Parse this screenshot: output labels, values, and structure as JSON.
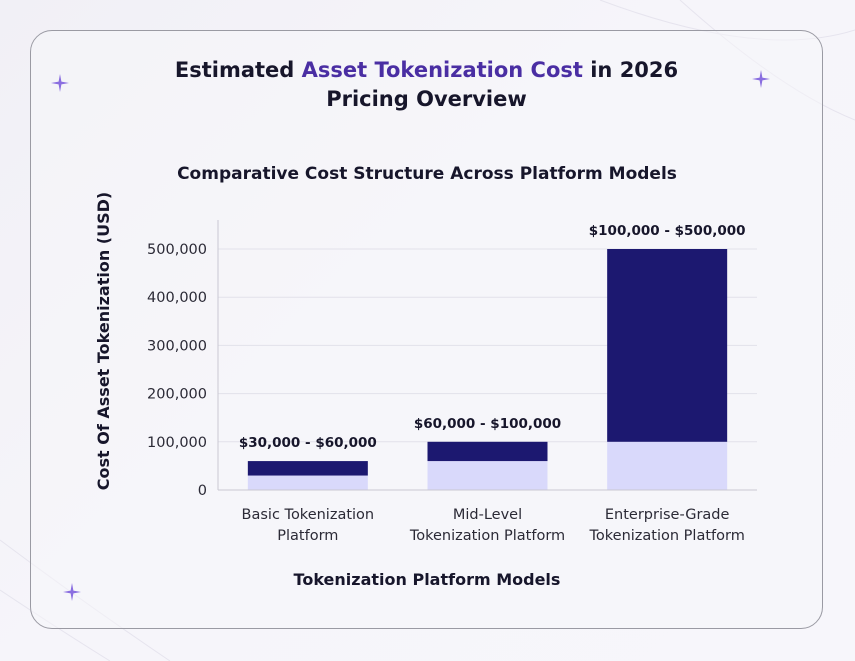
{
  "header": {
    "title_prefix": "Estimated ",
    "title_accent": "Asset Tokenization Cost",
    "title_suffix": " in 2026",
    "subtitle": "Pricing Overview"
  },
  "colors": {
    "accent": "#4a2ea3",
    "bar_dark": "#1c1870",
    "bar_light": "#d9d9fb",
    "grid": "#e2e1ea",
    "sparkle": "#8a6ee0"
  },
  "chart_data": {
    "type": "bar",
    "stacked": true,
    "title": "Comparative Cost Structure Across Platform Models",
    "xlabel": "Tokenization Platform Models",
    "ylabel": "Cost Of Asset Tokenization (USD)",
    "ylim": [
      0,
      500000
    ],
    "yticks": [
      0,
      100000,
      200000,
      300000,
      400000,
      500000
    ],
    "ytick_labels": [
      "0",
      "100,000",
      "200,000",
      "300,000",
      "400,000",
      "500,000"
    ],
    "grid": true,
    "categories": [
      [
        "Basic Tokenization",
        "Platform"
      ],
      [
        "Mid-Level",
        "Tokenization Platform"
      ],
      [
        "Enterprise-Grade",
        "Tokenization Platform"
      ]
    ],
    "ranges": [
      {
        "min": 30000,
        "max": 60000,
        "label": "$30,000 - $60,000"
      },
      {
        "min": 60000,
        "max": 100000,
        "label": "$60,000 - $100,000"
      },
      {
        "min": 100000,
        "max": 500000,
        "label": "$100,000 - $500,000"
      }
    ]
  }
}
